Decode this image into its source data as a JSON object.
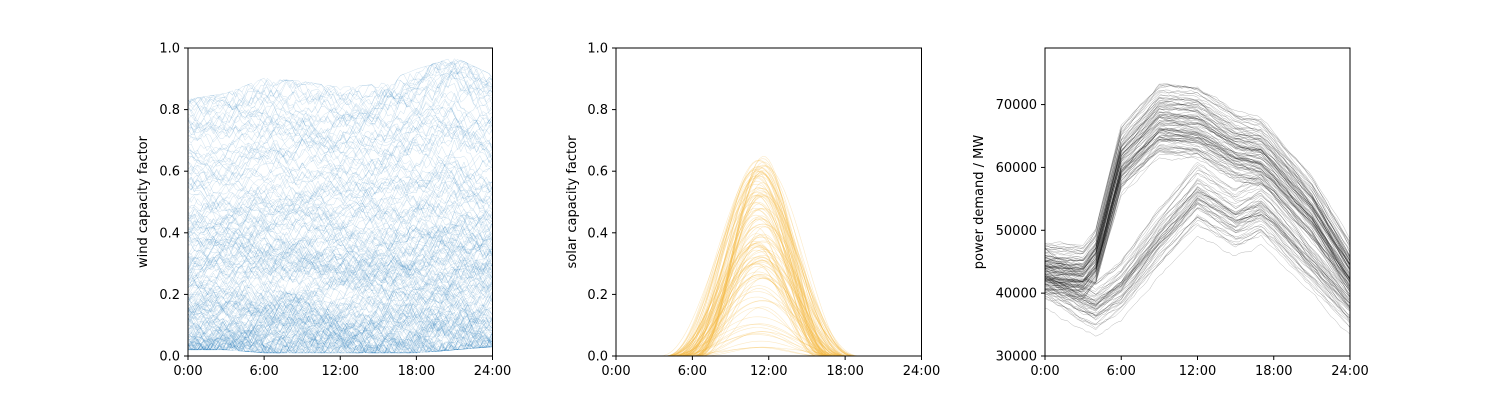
{
  "chart_data": [
    {
      "type": "line",
      "ylabel": "wind capacity factor",
      "xlabel": "",
      "xlim": [
        "0:00",
        "24:00"
      ],
      "ylim": [
        0,
        1
      ],
      "xticks": [
        "0:00",
        "6:00",
        "12:00",
        "18:00",
        "24:00"
      ],
      "yticks": [
        "0.0",
        "0.2",
        "0.4",
        "0.6",
        "0.8",
        "1.0"
      ],
      "color": "#1f77b4",
      "series_count": 365,
      "profile": {
        "hours": [
          0,
          3,
          6,
          9,
          12,
          15,
          18,
          21,
          24
        ],
        "min": [
          0.02,
          0.02,
          0.01,
          0.01,
          0.01,
          0.01,
          0.01,
          0.02,
          0.03
        ],
        "median": [
          0.22,
          0.19,
          0.15,
          0.14,
          0.17,
          0.19,
          0.23,
          0.27,
          0.29
        ],
        "max": [
          0.85,
          0.87,
          0.92,
          0.91,
          0.89,
          0.9,
          0.95,
          0.99,
          0.93
        ]
      }
    },
    {
      "type": "line",
      "ylabel": "solar capacity factor",
      "xlabel": "",
      "xlim": [
        "0:00",
        "24:00"
      ],
      "ylim": [
        0,
        1
      ],
      "xticks": [
        "0:00",
        "6:00",
        "12:00",
        "18:00",
        "24:00"
      ],
      "yticks": [
        "0.0",
        "0.2",
        "0.4",
        "0.6",
        "0.8",
        "1.0"
      ],
      "color": "#f5b942",
      "series_count": 365,
      "profile": {
        "hours": [
          0,
          3,
          6,
          9,
          11.5,
          14,
          17,
          20,
          24
        ],
        "min": [
          0,
          0,
          0,
          0,
          0.01,
          0,
          0,
          0,
          0
        ],
        "median": [
          0,
          0,
          0.03,
          0.25,
          0.35,
          0.22,
          0.02,
          0,
          0
        ],
        "max": [
          0,
          0,
          0.12,
          0.53,
          0.66,
          0.52,
          0.1,
          0,
          0
        ],
        "daylight_hours": [
          3,
          20
        ]
      }
    },
    {
      "type": "line",
      "ylabel": "power demand / MW",
      "xlabel": "",
      "xlim": [
        "0:00",
        "24:00"
      ],
      "ylim": [
        30000,
        79000
      ],
      "xticks": [
        "0:00",
        "6:00",
        "12:00",
        "18:00",
        "24:00"
      ],
      "yticks": [
        "30000",
        "40000",
        "50000",
        "60000",
        "70000"
      ],
      "color": "#000000",
      "series_count": 365,
      "profile": {
        "hours": [
          0,
          3,
          4,
          6,
          9,
          12,
          15,
          17,
          18,
          21,
          24
        ],
        "weekday": [
          45000,
          44500,
          47000,
          63000,
          69500,
          69000,
          65000,
          64000,
          62000,
          55000,
          45000
        ],
        "weekend": [
          44000,
          40000,
          39000,
          42000,
          50000,
          57000,
          53000,
          55000,
          53000,
          46000,
          39000
        ]
      }
    }
  ]
}
